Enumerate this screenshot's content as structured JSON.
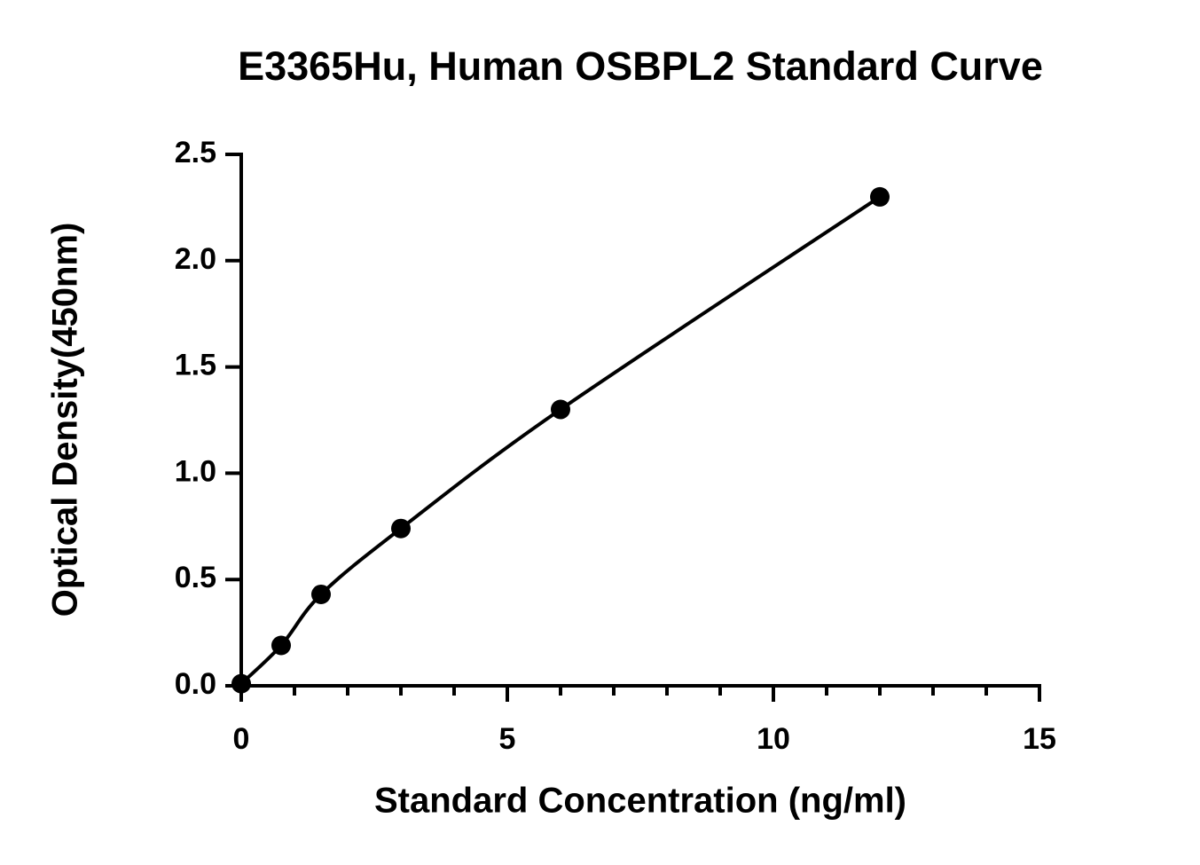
{
  "chart_data": {
    "type": "scatter",
    "title": "E3365Hu, Human OSBPL2 Standard Curve",
    "x_label": "Standard Concentration (ng/ml)",
    "y_label": "Optical Density(450nm)",
    "x": [
      0,
      0.75,
      1.5,
      3,
      6,
      12
    ],
    "values": [
      0.01,
      0.19,
      0.43,
      0.74,
      1.3,
      2.3
    ],
    "color": "#000000",
    "fit_curve": true,
    "xlim": [
      0,
      15
    ],
    "xticks": [
      0,
      5,
      10,
      15
    ],
    "xminorticks": [
      1,
      2,
      3,
      4,
      6,
      7,
      8,
      9,
      11,
      12,
      13,
      14
    ],
    "ylim": [
      0,
      2.5
    ],
    "yticks": [
      {
        "value": 0,
        "label": "0.0"
      },
      0.5,
      {
        "value": 1,
        "label": "1.0"
      },
      1.5,
      {
        "value": 2,
        "label": "2.0"
      },
      2.5
    ]
  }
}
